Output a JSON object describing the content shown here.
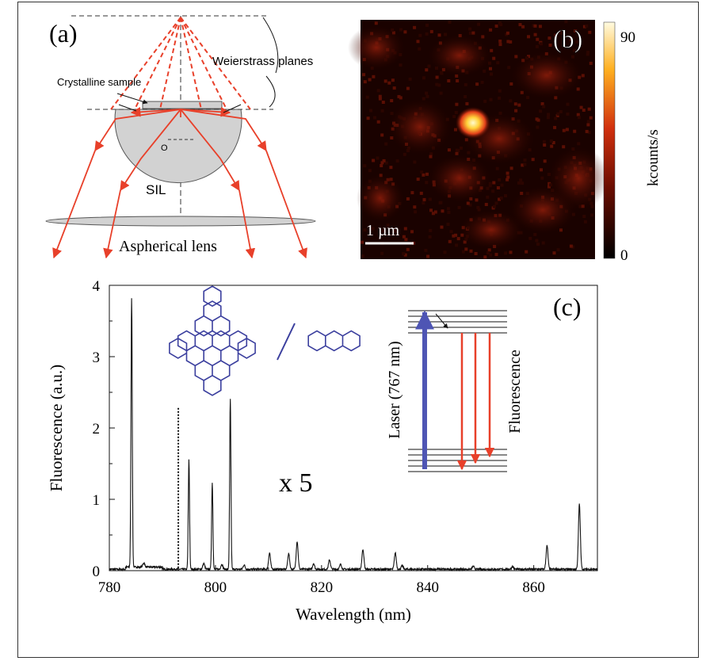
{
  "panel_a": {
    "label": "(a)",
    "crystalline_sample": "Crystalline sample",
    "weierstrass": "Weierstrass planes",
    "center": "O",
    "sil": "SIL",
    "aspherical": "Aspherical lens"
  },
  "panel_b": {
    "label": "(b)",
    "colorbar_max": "90",
    "colorbar_min": "0",
    "colorbar_unit": "kcounts/s",
    "scalebar": "1 µm"
  },
  "panel_c": {
    "label": "(c)",
    "magnification": "x 5",
    "laser": "Laser (767 nm)",
    "fluorescence": "Fluorescence"
  },
  "chart_data": {
    "type": "line",
    "xlabel": "Wavelength (nm)",
    "ylabel": "Fluorescence (a.u.)",
    "xlim": [
      780,
      872
    ],
    "ylim": [
      0,
      4
    ],
    "xticks": [
      780,
      800,
      820,
      840,
      860
    ],
    "yticks": [
      0,
      1,
      2,
      3,
      4
    ],
    "baseline": 0.02,
    "magnified_from": 793,
    "peaks": [
      {
        "x": 784.2,
        "y": 3.8
      },
      {
        "x": 786.5,
        "y": 0.08
      },
      {
        "x": 795.0,
        "y": 1.55
      },
      {
        "x": 797.8,
        "y": 0.1
      },
      {
        "x": 799.4,
        "y": 1.24
      },
      {
        "x": 801.2,
        "y": 0.09
      },
      {
        "x": 802.8,
        "y": 2.4
      },
      {
        "x": 805.4,
        "y": 0.08
      },
      {
        "x": 810.2,
        "y": 0.25
      },
      {
        "x": 813.8,
        "y": 0.24
      },
      {
        "x": 815.4,
        "y": 0.41
      },
      {
        "x": 818.5,
        "y": 0.1
      },
      {
        "x": 821.5,
        "y": 0.15
      },
      {
        "x": 823.6,
        "y": 0.09
      },
      {
        "x": 827.8,
        "y": 0.3
      },
      {
        "x": 833.9,
        "y": 0.25
      },
      {
        "x": 835.2,
        "y": 0.07
      },
      {
        "x": 848.6,
        "y": 0.06
      },
      {
        "x": 856.0,
        "y": 0.06
      },
      {
        "x": 862.5,
        "y": 0.35
      },
      {
        "x": 868.6,
        "y": 0.93
      }
    ]
  }
}
